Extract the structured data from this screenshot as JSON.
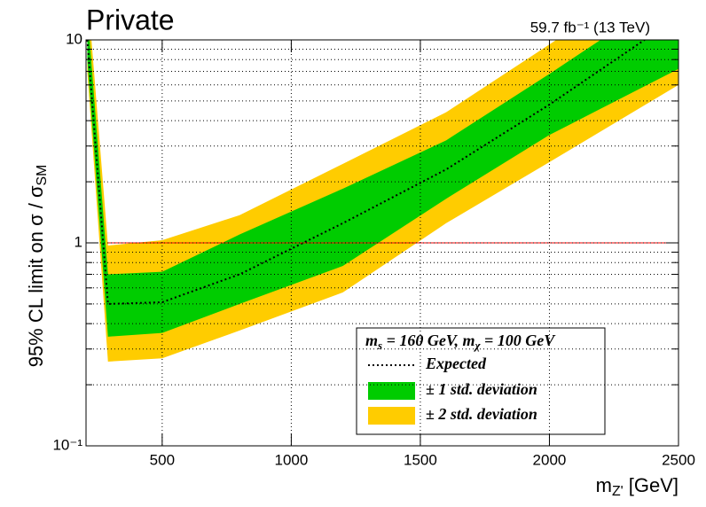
{
  "chart_data": {
    "type": "limit-bands",
    "title": "Private",
    "subtitle": "59.7 fb⁻¹ (13 TeV)",
    "y_label": [
      {
        "text": "95% CL limit on  σ / σ"
      },
      {
        "text": "SM",
        "sub": true
      }
    ],
    "x_label": [
      {
        "text": "m"
      },
      {
        "text": "Z'",
        "sub": true
      },
      {
        "text": " [GeV]"
      }
    ],
    "legend_title": [
      {
        "text": "m"
      },
      {
        "text": "s",
        "sub": true
      },
      {
        "text": " = 160 GeV, m"
      },
      {
        "text": "χ",
        "sub": true
      },
      {
        "text": " = 100 GeV"
      }
    ],
    "x": [
      210,
      290,
      500,
      800,
      1200,
      1600,
      2000,
      2500
    ],
    "series": [
      {
        "name": "Expected",
        "color": "#000000",
        "style": "dotted",
        "values": [
          10,
          0.5,
          0.51,
          0.7,
          1.25,
          2.3,
          4.8,
          13
        ]
      }
    ],
    "bands": [
      {
        "name": "± 1 std. deviation",
        "color": "#00cc00",
        "upper": [
          14,
          0.7,
          0.72,
          1.1,
          1.85,
          3.2,
          6.8,
          18
        ],
        "lower": [
          8,
          0.345,
          0.36,
          0.5,
          0.77,
          1.65,
          3.4,
          7.2
        ]
      },
      {
        "name": "± 2 std. deviation",
        "color": "#ffcc00",
        "upper": [
          18,
          0.97,
          1.03,
          1.37,
          2.45,
          4.4,
          9.5,
          25
        ],
        "lower": [
          7,
          0.26,
          0.27,
          0.37,
          0.57,
          1.25,
          2.5,
          6.0
        ]
      }
    ],
    "reference_line": {
      "value": 1,
      "color": "#ff0000",
      "xrange": [
        290,
        2500
      ]
    },
    "xlim": [
      205,
      2500
    ],
    "xticks": [
      500,
      1000,
      1500,
      2000,
      2500
    ],
    "ylim": [
      0.1,
      10
    ],
    "log_y": true,
    "yticks": [
      {
        "value": 0.1,
        "label": "10⁻¹"
      },
      1,
      10
    ],
    "yminorticks": [
      0.2,
      0.3,
      0.4,
      0.5,
      0.6,
      0.7,
      0.8,
      0.9,
      2,
      3,
      4,
      5,
      6,
      7,
      8,
      9
    ],
    "grid": true
  }
}
